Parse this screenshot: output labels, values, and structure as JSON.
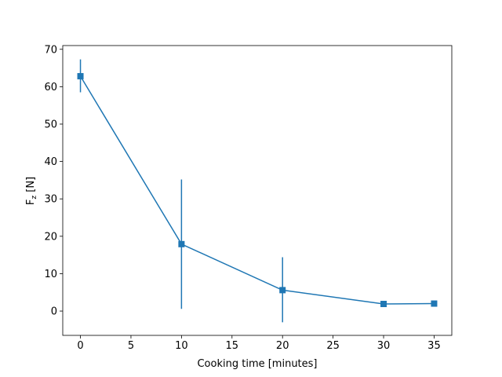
{
  "chart_data": {
    "type": "line",
    "title": "",
    "xlabel": "Cooking time [minutes]",
    "ylabel_main": "F",
    "ylabel_sub": "z",
    "ylabel_unit": " [N]",
    "xlim": [
      -1.75,
      36.75
    ],
    "ylim": [
      -6.5,
      71
    ],
    "xticks": [
      0,
      5,
      10,
      15,
      20,
      25,
      30,
      35
    ],
    "yticks": [
      0,
      10,
      20,
      30,
      40,
      50,
      60,
      70
    ],
    "grid": false,
    "legend": "none",
    "series": [
      {
        "marker": "square",
        "color": "#1f77b4",
        "points": [
          {
            "x": 0,
            "y": 62.8,
            "err_low": 58.5,
            "err_high": 67.3
          },
          {
            "x": 10,
            "y": 17.9,
            "err_low": 0.6,
            "err_high": 35.2
          },
          {
            "x": 20,
            "y": 5.6,
            "err_low": -3.0,
            "err_high": 14.4
          },
          {
            "x": 30,
            "y": 1.9,
            "err_low": 1.9,
            "err_high": 1.9
          },
          {
            "x": 35,
            "y": 2.0,
            "err_low": 2.0,
            "err_high": 2.0
          }
        ]
      }
    ]
  }
}
